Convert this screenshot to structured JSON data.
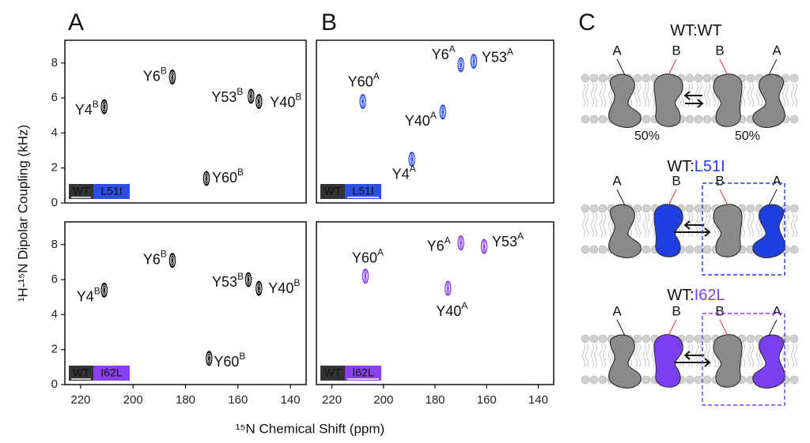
{
  "panel_labels": [
    "A",
    "B",
    "C"
  ],
  "axes": {
    "xlabel": "¹⁵N Chemical Shift (ppm)",
    "ylabel": "¹H-¹⁵N Dipolar Coupling (kHz)"
  },
  "chart_data": [
    {
      "type": "scatter",
      "xlim": [
        226,
        134
      ],
      "ylim": [
        0,
        9.3
      ],
      "yticks": [
        0,
        2,
        4,
        6,
        8
      ],
      "badges": [
        {
          "text": "WT",
          "color": "#333333",
          "underline": true
        },
        {
          "text": "L51I",
          "color": "#2f4fe0",
          "underline": false
        }
      ],
      "series": [
        {
          "color": "#111111",
          "label_color": "#e0302a",
          "x": [
            211,
            185,
            155,
            152,
            172
          ],
          "values": [
            5.5,
            7.2,
            6.1,
            5.8,
            1.4
          ],
          "point_labels": [
            "Y4",
            "Y6",
            "Y53",
            "Y40",
            "Y60"
          ],
          "point_label_sup": [
            "B",
            "B",
            "B",
            "B",
            "B"
          ]
        }
      ]
    },
    {
      "type": "scatter",
      "xlim": [
        226,
        134
      ],
      "ylim": [
        0,
        9.3
      ],
      "badges": [
        {
          "text": "WT",
          "color": "#333333",
          "underline": false
        },
        {
          "text": "L51I",
          "color": "#2f4fe0",
          "underline": true
        }
      ],
      "series": [
        {
          "color": "#2f4fe0",
          "label_color": "#111111",
          "x": [
            208,
            170,
            165,
            177,
            189
          ],
          "values": [
            5.8,
            7.9,
            8.1,
            5.2,
            2.5
          ],
          "point_labels": [
            "Y60",
            "Y6",
            "Y53",
            "Y40",
            "Y4"
          ],
          "point_label_sup": [
            "A",
            "A",
            "A",
            "A",
            "A"
          ]
        }
      ]
    },
    {
      "type": "scatter",
      "xlim": [
        226,
        134
      ],
      "ylim": [
        0,
        9.3
      ],
      "yticks": [
        0,
        2,
        4,
        6,
        8
      ],
      "xticks": [
        220,
        200,
        180,
        160,
        140
      ],
      "badges": [
        {
          "text": "WT",
          "color": "#333333",
          "underline": true
        },
        {
          "text": "I62L",
          "color": "#8a3ff0",
          "underline": false
        }
      ],
      "series": [
        {
          "color": "#111111",
          "label_color": "#e0302a",
          "x": [
            211,
            185,
            156,
            152,
            171
          ],
          "values": [
            5.4,
            7.1,
            6.0,
            5.5,
            1.5
          ],
          "point_labels": [
            "Y4",
            "Y6",
            "Y53",
            "Y40",
            "Y60"
          ],
          "point_label_sup": [
            "B",
            "B",
            "B",
            "B",
            "B"
          ]
        }
      ]
    },
    {
      "type": "scatter",
      "xlim": [
        226,
        134
      ],
      "ylim": [
        0,
        9.3
      ],
      "xticks": [
        220,
        200,
        180,
        160,
        140
      ],
      "badges": [
        {
          "text": "WT",
          "color": "#333333",
          "underline": false
        },
        {
          "text": "I62L",
          "color": "#8a3ff0",
          "underline": true
        }
      ],
      "series": [
        {
          "color": "#8a3ff0",
          "label_color": "#111111",
          "x": [
            207,
            170,
            161,
            175
          ],
          "values": [
            6.2,
            8.1,
            7.9,
            5.5
          ],
          "point_labels": [
            "Y60",
            "Y6",
            "Y53",
            "Y40"
          ],
          "point_label_sup": [
            "A",
            "A",
            "A",
            "A"
          ]
        }
      ]
    }
  ],
  "diagram": {
    "rows": [
      {
        "title": [
          {
            "text": "WT:",
            "color": "#111111"
          },
          {
            "text": "WT",
            "color": "#111111"
          }
        ],
        "mutant_color": "#8a8a8a",
        "labels": [
          "A",
          "B",
          "B",
          "A"
        ],
        "percents": [
          "50%",
          "50%"
        ]
      },
      {
        "title": [
          {
            "text": "WT:",
            "color": "#111111"
          },
          {
            "text": "L51I",
            "color": "#1f3fe0"
          }
        ],
        "mutant_color": "#1f3fe0",
        "labels": [
          "A",
          "B",
          "B",
          "A"
        ]
      },
      {
        "title": [
          {
            "text": "WT:",
            "color": "#111111"
          },
          {
            "text": "I62L",
            "color": "#7a3ff0"
          }
        ],
        "mutant_color": "#7a3ff0",
        "labels": [
          "A",
          "B",
          "B",
          "A"
        ]
      }
    ]
  }
}
